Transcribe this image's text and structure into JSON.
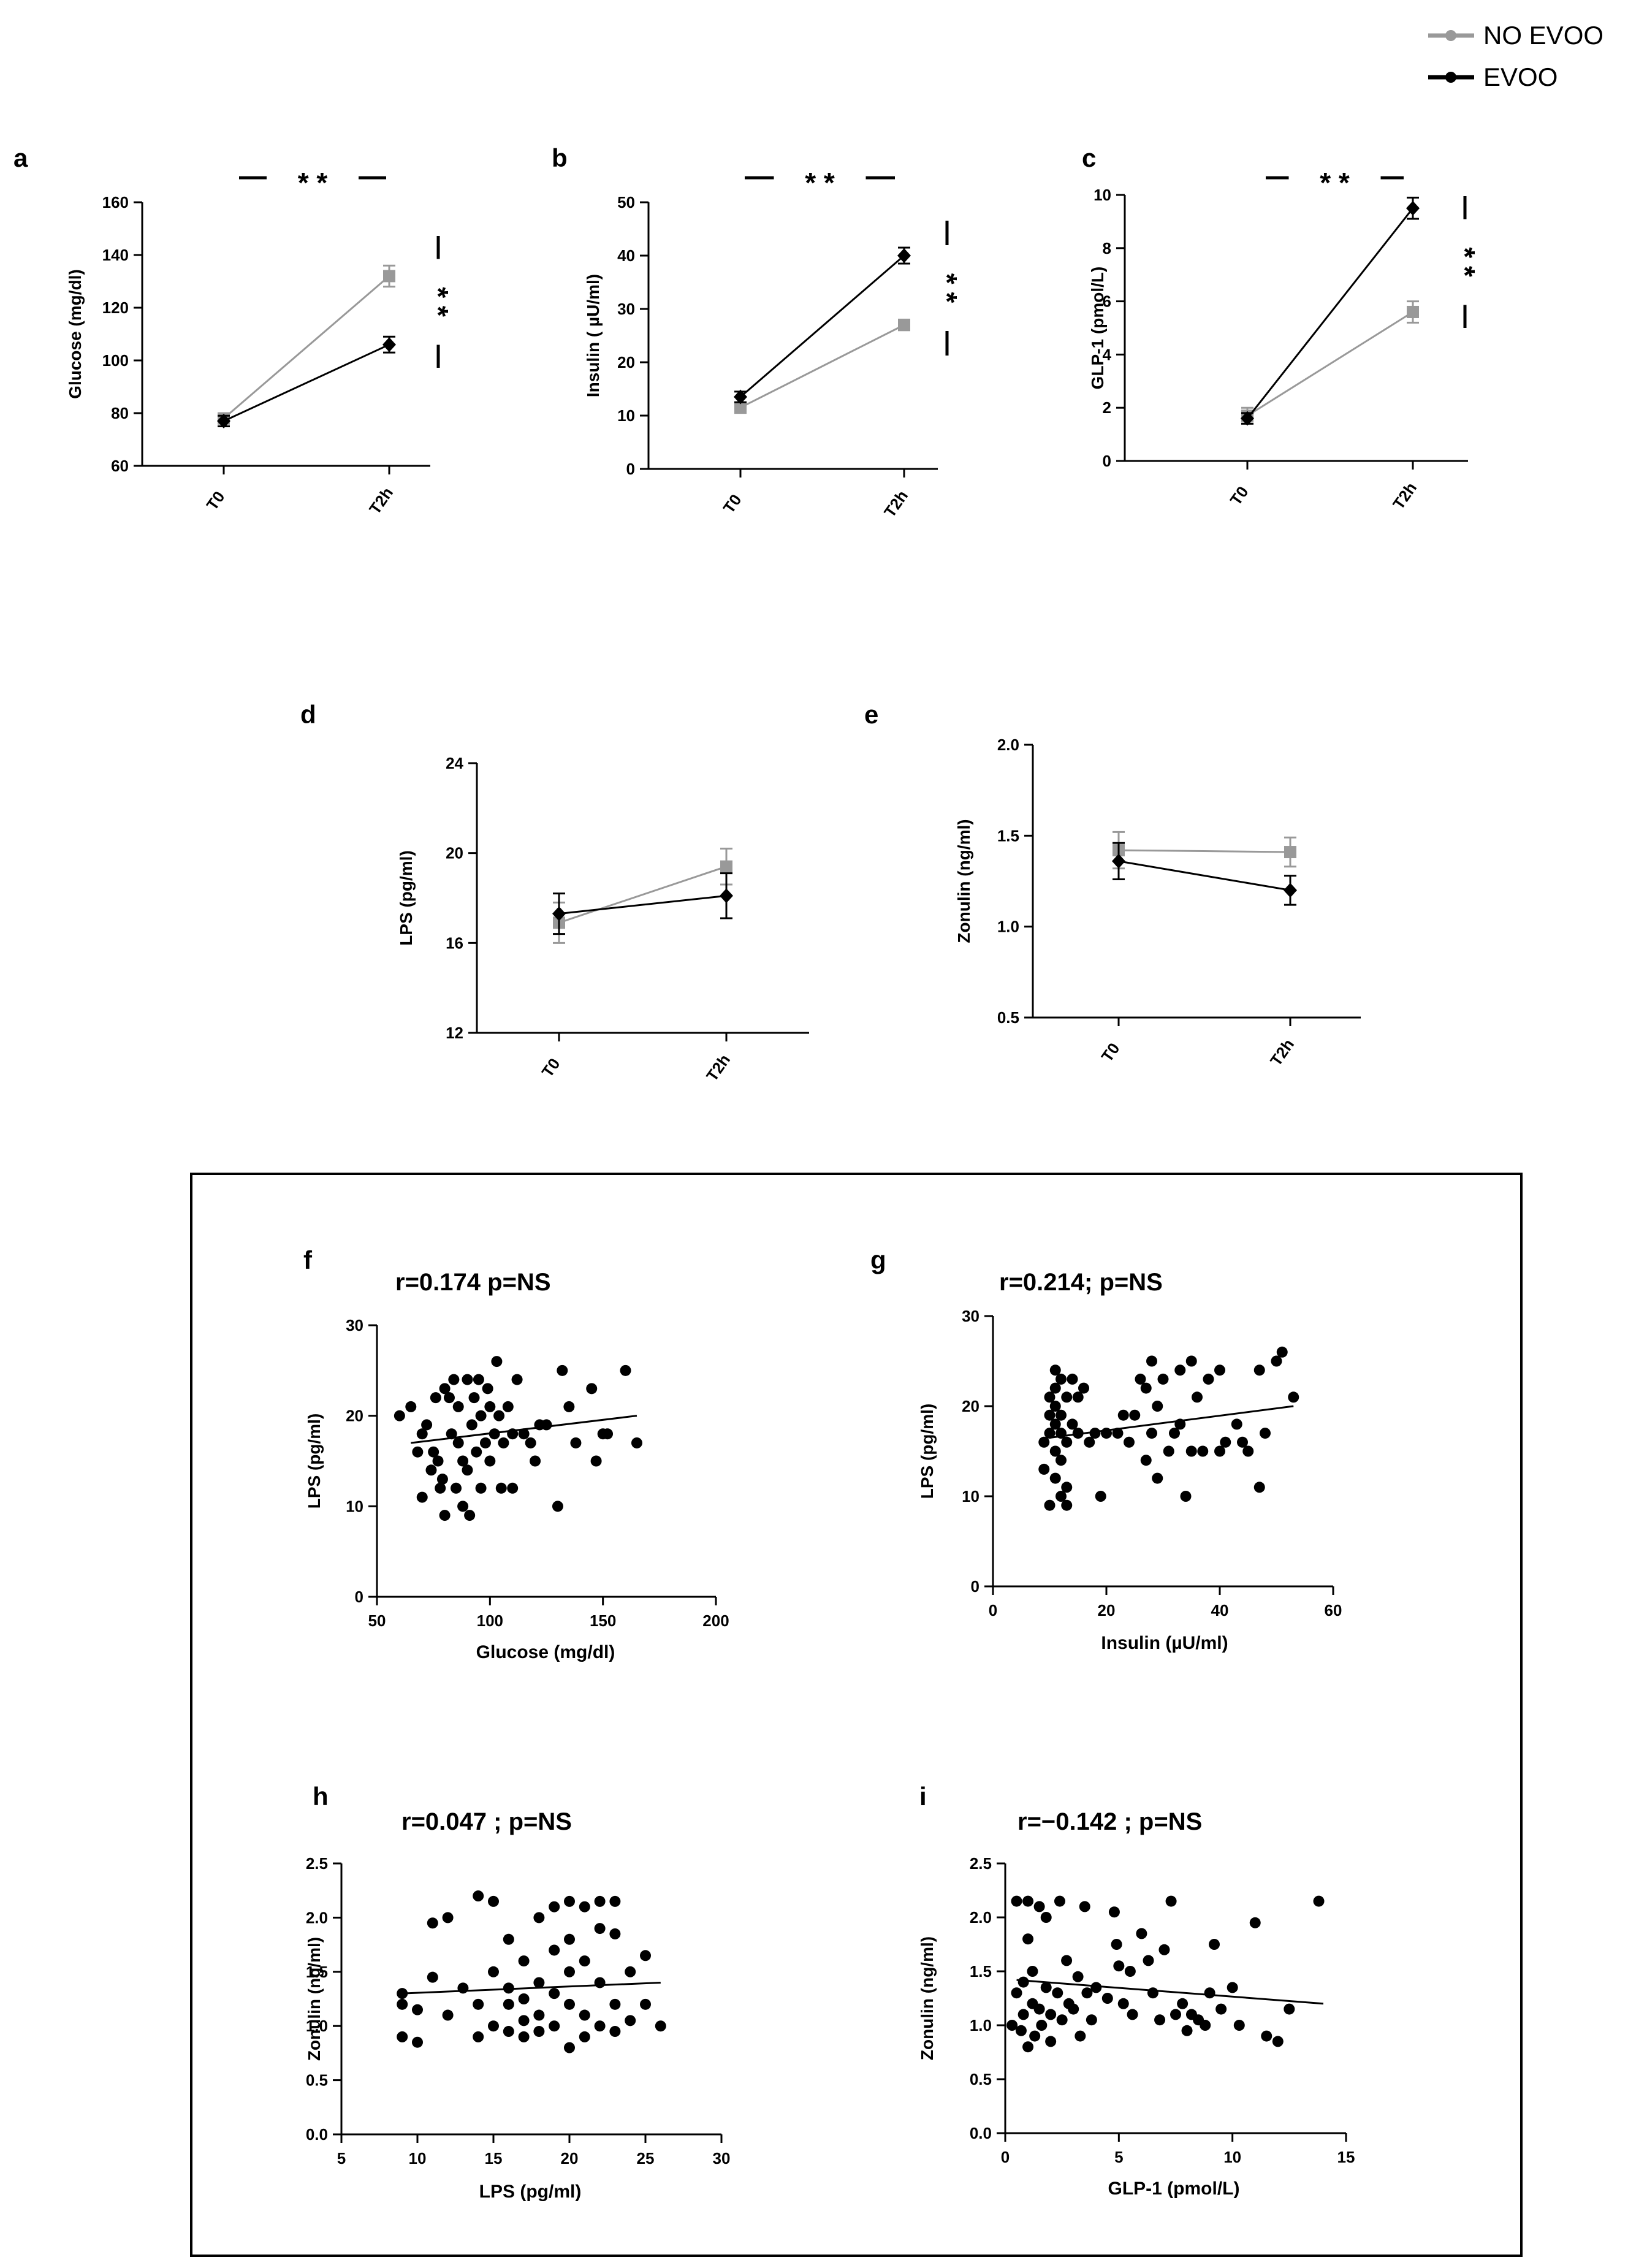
{
  "legend": {
    "items": [
      {
        "label": "NO EVOO",
        "color": "#999999"
      },
      {
        "label": "EVOO",
        "color": "#000000"
      }
    ]
  },
  "significance": "* *",
  "chart_data": [
    {
      "id": "a",
      "type": "line",
      "panel_label": "a",
      "categories": [
        "T0",
        "T2h"
      ],
      "ylabel": "Glucose (mg/dl)",
      "ylim": [
        60,
        160
      ],
      "yticks": [
        "60",
        "80",
        "100",
        "120",
        "140",
        "160"
      ],
      "series": [
        {
          "name": "NO EVOO",
          "color": "#999999",
          "values": [
            78,
            132
          ],
          "errors": [
            2,
            4
          ]
        },
        {
          "name": "EVOO",
          "color": "#000000",
          "values": [
            77,
            106
          ],
          "errors": [
            2,
            3
          ]
        }
      ],
      "sig_top": "* *",
      "sig_side": "* *"
    },
    {
      "id": "b",
      "type": "line",
      "panel_label": "b",
      "categories": [
        "T0",
        "T2h"
      ],
      "ylabel": "Insulin ( µU/ml)",
      "ylim": [
        0,
        50
      ],
      "yticks": [
        "0",
        "10",
        "20",
        "30",
        "40",
        "50"
      ],
      "series": [
        {
          "name": "NO EVOO",
          "color": "#999999",
          "values": [
            11.5,
            27
          ],
          "errors": [
            1,
            1
          ]
        },
        {
          "name": "EVOO",
          "color": "#000000",
          "values": [
            13.5,
            40
          ],
          "errors": [
            1,
            1.5
          ]
        }
      ],
      "sig_top": "* *",
      "sig_side": "* *"
    },
    {
      "id": "c",
      "type": "line",
      "panel_label": "c",
      "categories": [
        "T0",
        "T2h"
      ],
      "ylabel": "GLP-1 (pmol/L)",
      "ylim": [
        0,
        10
      ],
      "yticks": [
        "0",
        "2",
        "4",
        "6",
        "8",
        "10"
      ],
      "series": [
        {
          "name": "NO EVOO",
          "color": "#999999",
          "values": [
            1.7,
            5.6
          ],
          "errors": [
            0.3,
            0.4
          ]
        },
        {
          "name": "EVOO",
          "color": "#000000",
          "values": [
            1.6,
            9.5
          ],
          "errors": [
            0.2,
            0.4
          ]
        }
      ],
      "sig_top": "* *",
      "sig_side": "* *"
    },
    {
      "id": "d",
      "type": "line",
      "panel_label": "d",
      "categories": [
        "T0",
        "T2h"
      ],
      "ylabel": "LPS (pg/ml)",
      "ylim": [
        12,
        24
      ],
      "yticks": [
        "12",
        "16",
        "20",
        "24"
      ],
      "series": [
        {
          "name": "NO EVOO",
          "color": "#999999",
          "values": [
            16.9,
            19.4
          ],
          "errors": [
            0.9,
            0.8
          ]
        },
        {
          "name": "EVOO",
          "color": "#000000",
          "values": [
            17.3,
            18.1
          ],
          "errors": [
            0.9,
            1.0
          ]
        }
      ]
    },
    {
      "id": "e",
      "type": "line",
      "panel_label": "e",
      "categories": [
        "T0",
        "T2h"
      ],
      "ylabel": "Zonulin (ng/ml)",
      "ylim": [
        0.5,
        2.0
      ],
      "yticks": [
        "0.5",
        "1.0",
        "1.5",
        "2.0"
      ],
      "series": [
        {
          "name": "NO EVOO",
          "color": "#999999",
          "values": [
            1.42,
            1.41
          ],
          "errors": [
            0.1,
            0.08
          ]
        },
        {
          "name": "EVOO",
          "color": "#000000",
          "values": [
            1.36,
            1.2
          ],
          "errors": [
            0.1,
            0.08
          ]
        }
      ]
    },
    {
      "id": "f",
      "type": "scatter",
      "panel_label": "f",
      "stats": "r=0.174  p=NS",
      "xlabel": "Glucose (mg/dl)",
      "ylabel": "LPS (pg/ml)",
      "xlim": [
        50,
        200
      ],
      "ylim": [
        0,
        30
      ],
      "xticks": [
        "50",
        "100",
        "150",
        "200"
      ],
      "yticks": [
        "0",
        "10",
        "20",
        "30"
      ],
      "trend": [
        [
          65,
          17
        ],
        [
          165,
          20
        ]
      ],
      "points": [
        [
          60,
          20
        ],
        [
          65,
          21
        ],
        [
          68,
          16
        ],
        [
          70,
          18
        ],
        [
          70,
          11
        ],
        [
          72,
          19
        ],
        [
          74,
          14
        ],
        [
          75,
          16
        ],
        [
          76,
          22
        ],
        [
          77,
          15
        ],
        [
          78,
          12
        ],
        [
          79,
          13
        ],
        [
          80,
          23
        ],
        [
          80,
          9
        ],
        [
          82,
          22
        ],
        [
          83,
          18
        ],
        [
          84,
          24
        ],
        [
          85,
          12
        ],
        [
          86,
          21
        ],
        [
          86,
          17
        ],
        [
          88,
          15
        ],
        [
          88,
          10
        ],
        [
          90,
          24
        ],
        [
          90,
          14
        ],
        [
          91,
          9
        ],
        [
          92,
          19
        ],
        [
          93,
          22
        ],
        [
          94,
          16
        ],
        [
          95,
          24
        ],
        [
          96,
          20
        ],
        [
          96,
          12
        ],
        [
          98,
          17
        ],
        [
          99,
          23
        ],
        [
          100,
          21
        ],
        [
          100,
          15
        ],
        [
          102,
          18
        ],
        [
          103,
          26
        ],
        [
          104,
          20
        ],
        [
          105,
          12
        ],
        [
          106,
          17
        ],
        [
          108,
          21
        ],
        [
          110,
          12
        ],
        [
          110,
          18
        ],
        [
          112,
          24
        ],
        [
          115,
          18
        ],
        [
          118,
          17
        ],
        [
          120,
          15
        ],
        [
          122,
          19
        ],
        [
          125,
          19
        ],
        [
          130,
          10
        ],
        [
          132,
          25
        ],
        [
          135,
          21
        ],
        [
          138,
          17
        ],
        [
          145,
          23
        ],
        [
          147,
          15
        ],
        [
          150,
          18
        ],
        [
          152,
          18
        ],
        [
          160,
          25
        ],
        [
          165,
          17
        ]
      ]
    },
    {
      "id": "g",
      "type": "scatter",
      "panel_label": "g",
      "stats": "r=0.214; p=NS",
      "xlabel": "Insulin (µU/ml)",
      "ylabel": "LPS (pg/ml)",
      "xlim": [
        0,
        60
      ],
      "ylim": [
        0,
        30
      ],
      "xticks": [
        "0",
        "20",
        "40",
        "60"
      ],
      "yticks": [
        "0",
        "10",
        "20",
        "30"
      ],
      "trend": [
        [
          10,
          16.5
        ],
        [
          53,
          20
        ]
      ],
      "points": [
        [
          9,
          16
        ],
        [
          9,
          13
        ],
        [
          10,
          19
        ],
        [
          10,
          9
        ],
        [
          10,
          21
        ],
        [
          10,
          17
        ],
        [
          11,
          24
        ],
        [
          11,
          15
        ],
        [
          11,
          22
        ],
        [
          11,
          18
        ],
        [
          11,
          12
        ],
        [
          11,
          20
        ],
        [
          12,
          17
        ],
        [
          12,
          10
        ],
        [
          12,
          14
        ],
        [
          12,
          23
        ],
        [
          12,
          19
        ],
        [
          13,
          21
        ],
        [
          13,
          16
        ],
        [
          13,
          11
        ],
        [
          13,
          9
        ],
        [
          14,
          23
        ],
        [
          14,
          18
        ],
        [
          15,
          21
        ],
        [
          15,
          17
        ],
        [
          16,
          22
        ],
        [
          17,
          16
        ],
        [
          18,
          17
        ],
        [
          19,
          10
        ],
        [
          20,
          17
        ],
        [
          22,
          17
        ],
        [
          23,
          19
        ],
        [
          24,
          16
        ],
        [
          25,
          19
        ],
        [
          26,
          23
        ],
        [
          27,
          22
        ],
        [
          27,
          14
        ],
        [
          28,
          25
        ],
        [
          28,
          17
        ],
        [
          29,
          12
        ],
        [
          29,
          20
        ],
        [
          30,
          23
        ],
        [
          31,
          15
        ],
        [
          32,
          17
        ],
        [
          33,
          24
        ],
        [
          33,
          18
        ],
        [
          34,
          10
        ],
        [
          35,
          25
        ],
        [
          35,
          15
        ],
        [
          36,
          21
        ],
        [
          37,
          15
        ],
        [
          38,
          23
        ],
        [
          40,
          24
        ],
        [
          40,
          15
        ],
        [
          41,
          16
        ],
        [
          43,
          18
        ],
        [
          44,
          16
        ],
        [
          45,
          15
        ],
        [
          47,
          24
        ],
        [
          47,
          11
        ],
        [
          48,
          17
        ],
        [
          50,
          25
        ],
        [
          51,
          26
        ],
        [
          53,
          21
        ]
      ]
    },
    {
      "id": "h",
      "type": "scatter",
      "panel_label": "h",
      "stats": "r=0.047 ; p=NS",
      "xlabel": "LPS (pg/ml)",
      "ylabel": "Zonulin (ng/ml)",
      "xlim": [
        5,
        30
      ],
      "ylim": [
        0.0,
        2.5
      ],
      "xticks": [
        "5",
        "10",
        "15",
        "20",
        "25",
        "30"
      ],
      "yticks": [
        "0.0",
        "0.5",
        "1.0",
        "1.5",
        "2.0",
        "2.5"
      ],
      "trend": [
        [
          9,
          1.3
        ],
        [
          26,
          1.4
        ]
      ],
      "points": [
        [
          9,
          1.2
        ],
        [
          9,
          0.9
        ],
        [
          9,
          1.3
        ],
        [
          10,
          0.85
        ],
        [
          10,
          1.15
        ],
        [
          11,
          1.45
        ],
        [
          11,
          1.95
        ],
        [
          12,
          2.0
        ],
        [
          12,
          1.1
        ],
        [
          13,
          1.35
        ],
        [
          14,
          0.9
        ],
        [
          14,
          1.2
        ],
        [
          14,
          2.2
        ],
        [
          15,
          1.0
        ],
        [
          15,
          1.5
        ],
        [
          15,
          2.15
        ],
        [
          16,
          1.35
        ],
        [
          16,
          0.95
        ],
        [
          16,
          1.2
        ],
        [
          16,
          1.8
        ],
        [
          17,
          1.05
        ],
        [
          17,
          1.6
        ],
        [
          17,
          0.9
        ],
        [
          17,
          1.25
        ],
        [
          18,
          2.0
        ],
        [
          18,
          1.1
        ],
        [
          18,
          1.4
        ],
        [
          18,
          0.95
        ],
        [
          19,
          2.1
        ],
        [
          19,
          1.7
        ],
        [
          19,
          1.3
        ],
        [
          19,
          1.0
        ],
        [
          20,
          2.15
        ],
        [
          20,
          1.8
        ],
        [
          20,
          1.2
        ],
        [
          20,
          0.8
        ],
        [
          20,
          1.5
        ],
        [
          21,
          2.1
        ],
        [
          21,
          1.6
        ],
        [
          21,
          1.1
        ],
        [
          21,
          0.9
        ],
        [
          22,
          2.15
        ],
        [
          22,
          1.9
        ],
        [
          22,
          1.4
        ],
        [
          22,
          1.0
        ],
        [
          23,
          2.15
        ],
        [
          23,
          1.85
        ],
        [
          23,
          1.2
        ],
        [
          23,
          0.95
        ],
        [
          24,
          1.5
        ],
        [
          24,
          1.05
        ],
        [
          25,
          1.2
        ],
        [
          25,
          1.65
        ],
        [
          26,
          1.0
        ]
      ]
    },
    {
      "id": "i",
      "type": "scatter",
      "panel_label": "i",
      "stats": "r=−0.142 ; p=NS",
      "xlabel": "GLP-1 (pmol/L)",
      "ylabel": "Zonulin (ng/ml)",
      "xlim": [
        0,
        15
      ],
      "ylim": [
        0.0,
        2.5
      ],
      "xticks": [
        "0",
        "5",
        "10",
        "15"
      ],
      "yticks": [
        "0.0",
        "0.5",
        "1.0",
        "1.5",
        "2.0",
        "2.5"
      ],
      "trend": [
        [
          0.5,
          1.42
        ],
        [
          14,
          1.2
        ]
      ],
      "points": [
        [
          0.3,
          1.0
        ],
        [
          0.5,
          2.15
        ],
        [
          0.5,
          1.3
        ],
        [
          0.7,
          0.95
        ],
        [
          0.8,
          1.4
        ],
        [
          0.8,
          1.1
        ],
        [
          1.0,
          2.15
        ],
        [
          1.0,
          1.8
        ],
        [
          1.0,
          0.8
        ],
        [
          1.2,
          1.2
        ],
        [
          1.2,
          1.5
        ],
        [
          1.3,
          0.9
        ],
        [
          1.5,
          2.1
        ],
        [
          1.5,
          1.15
        ],
        [
          1.6,
          1.0
        ],
        [
          1.8,
          1.35
        ],
        [
          1.8,
          2.0
        ],
        [
          2.0,
          1.1
        ],
        [
          2.0,
          0.85
        ],
        [
          2.3,
          1.3
        ],
        [
          2.4,
          2.15
        ],
        [
          2.5,
          1.05
        ],
        [
          2.7,
          1.6
        ],
        [
          2.8,
          1.2
        ],
        [
          3.0,
          1.15
        ],
        [
          3.2,
          1.45
        ],
        [
          3.3,
          0.9
        ],
        [
          3.5,
          2.1
        ],
        [
          3.6,
          1.3
        ],
        [
          3.8,
          1.05
        ],
        [
          4.0,
          1.35
        ],
        [
          4.5,
          1.25
        ],
        [
          4.8,
          2.05
        ],
        [
          4.9,
          1.75
        ],
        [
          5.0,
          1.55
        ],
        [
          5.2,
          1.2
        ],
        [
          5.5,
          1.5
        ],
        [
          5.6,
          1.1
        ],
        [
          6.0,
          1.85
        ],
        [
          6.3,
          1.6
        ],
        [
          6.5,
          1.3
        ],
        [
          6.8,
          1.05
        ],
        [
          7.0,
          1.7
        ],
        [
          7.3,
          2.15
        ],
        [
          7.5,
          1.1
        ],
        [
          7.8,
          1.2
        ],
        [
          8.0,
          0.95
        ],
        [
          8.2,
          1.1
        ],
        [
          8.5,
          1.05
        ],
        [
          8.8,
          1.0
        ],
        [
          9.0,
          1.3
        ],
        [
          9.2,
          1.75
        ],
        [
          9.5,
          1.15
        ],
        [
          10.0,
          1.35
        ],
        [
          10.3,
          1.0
        ],
        [
          11.0,
          1.95
        ],
        [
          11.5,
          0.9
        ],
        [
          12.0,
          0.85
        ],
        [
          12.5,
          1.15
        ],
        [
          13.8,
          2.15
        ]
      ]
    }
  ]
}
